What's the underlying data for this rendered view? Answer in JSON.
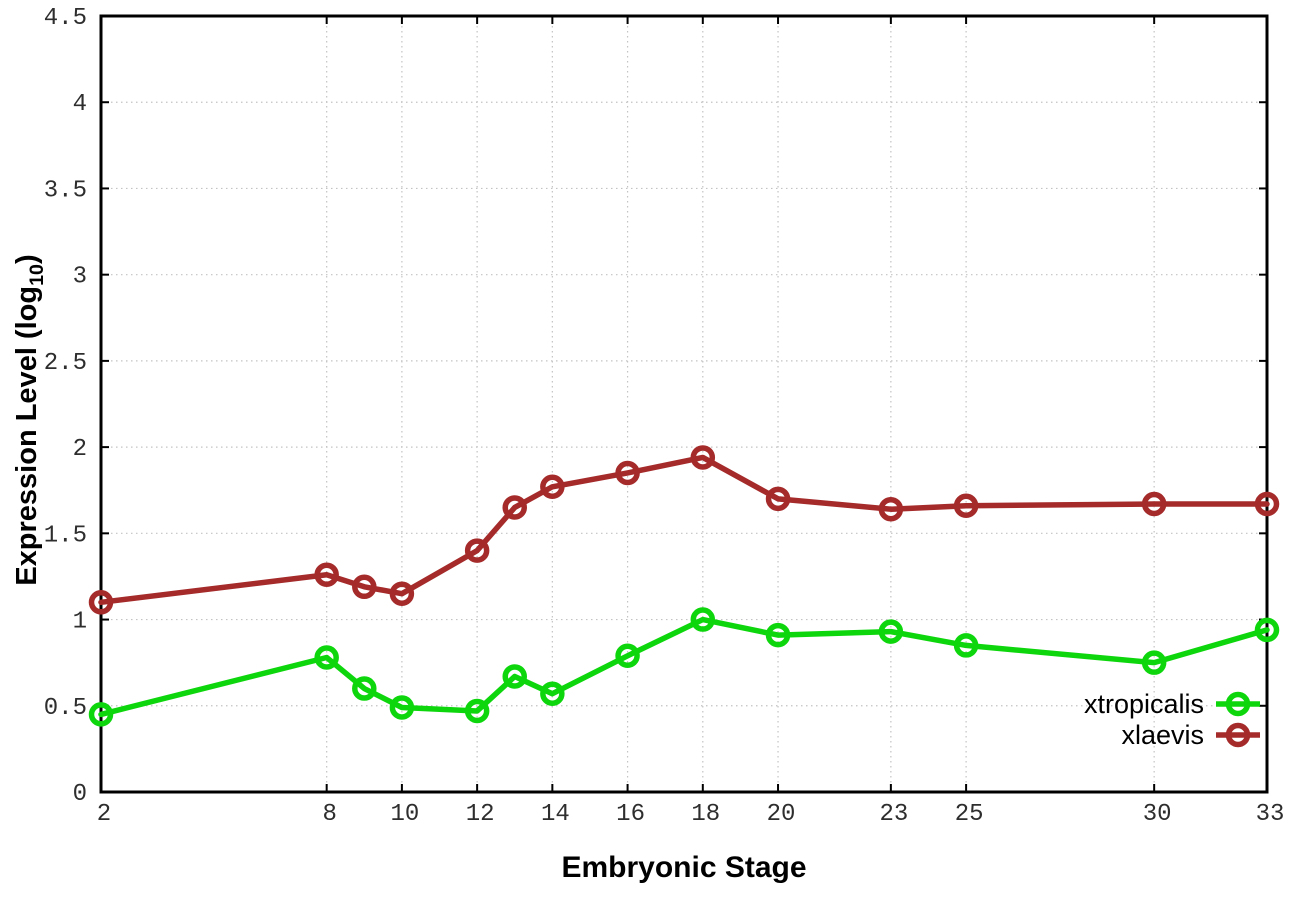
{
  "chart_data": {
    "type": "line",
    "title": "",
    "xlabel": "Embryonic Stage",
    "ylabel": "Expression Level (log10)",
    "ylabel_parts": {
      "main": "Expression Level (log",
      "sub": "10",
      "close": ")"
    },
    "xlim": [
      2,
      33
    ],
    "ylim": [
      0,
      4.5
    ],
    "grid": true,
    "legend_position": "inside-bottom-right",
    "x": [
      2,
      8,
      9,
      10,
      12,
      13,
      14,
      16,
      18,
      20,
      23,
      25,
      30,
      33
    ],
    "x_ticks": {
      "values": [
        2,
        8,
        10,
        12,
        14,
        16,
        18,
        20,
        23,
        25,
        30,
        33
      ],
      "labels": [
        "2",
        "8",
        "10",
        "12",
        "14",
        "16",
        "18",
        "20",
        "23",
        "25",
        "30",
        "33"
      ]
    },
    "y_ticks": {
      "values": [
        0,
        0.5,
        1,
        1.5,
        2,
        2.5,
        3,
        3.5,
        4,
        4.5
      ],
      "labels": [
        "0",
        "0.5",
        "1",
        "1.5",
        "2",
        "2.5",
        "3",
        "3.5",
        "4",
        "4.5"
      ]
    },
    "series": [
      {
        "name": "xtropicalis",
        "color": "#0dd60d",
        "values": [
          0.45,
          0.78,
          0.6,
          0.49,
          0.47,
          0.67,
          0.57,
          0.79,
          1.0,
          0.91,
          0.93,
          0.85,
          0.75,
          0.94
        ]
      },
      {
        "name": "xlaevis",
        "color": "#a52a2a",
        "values": [
          1.1,
          1.26,
          1.19,
          1.15,
          1.4,
          1.65,
          1.77,
          1.85,
          1.94,
          1.7,
          1.64,
          1.66,
          1.67,
          1.67
        ]
      }
    ],
    "colors": {
      "grid": "#c3c3c3",
      "axis": "#000000",
      "tick_text": "#2e2e2e"
    }
  }
}
